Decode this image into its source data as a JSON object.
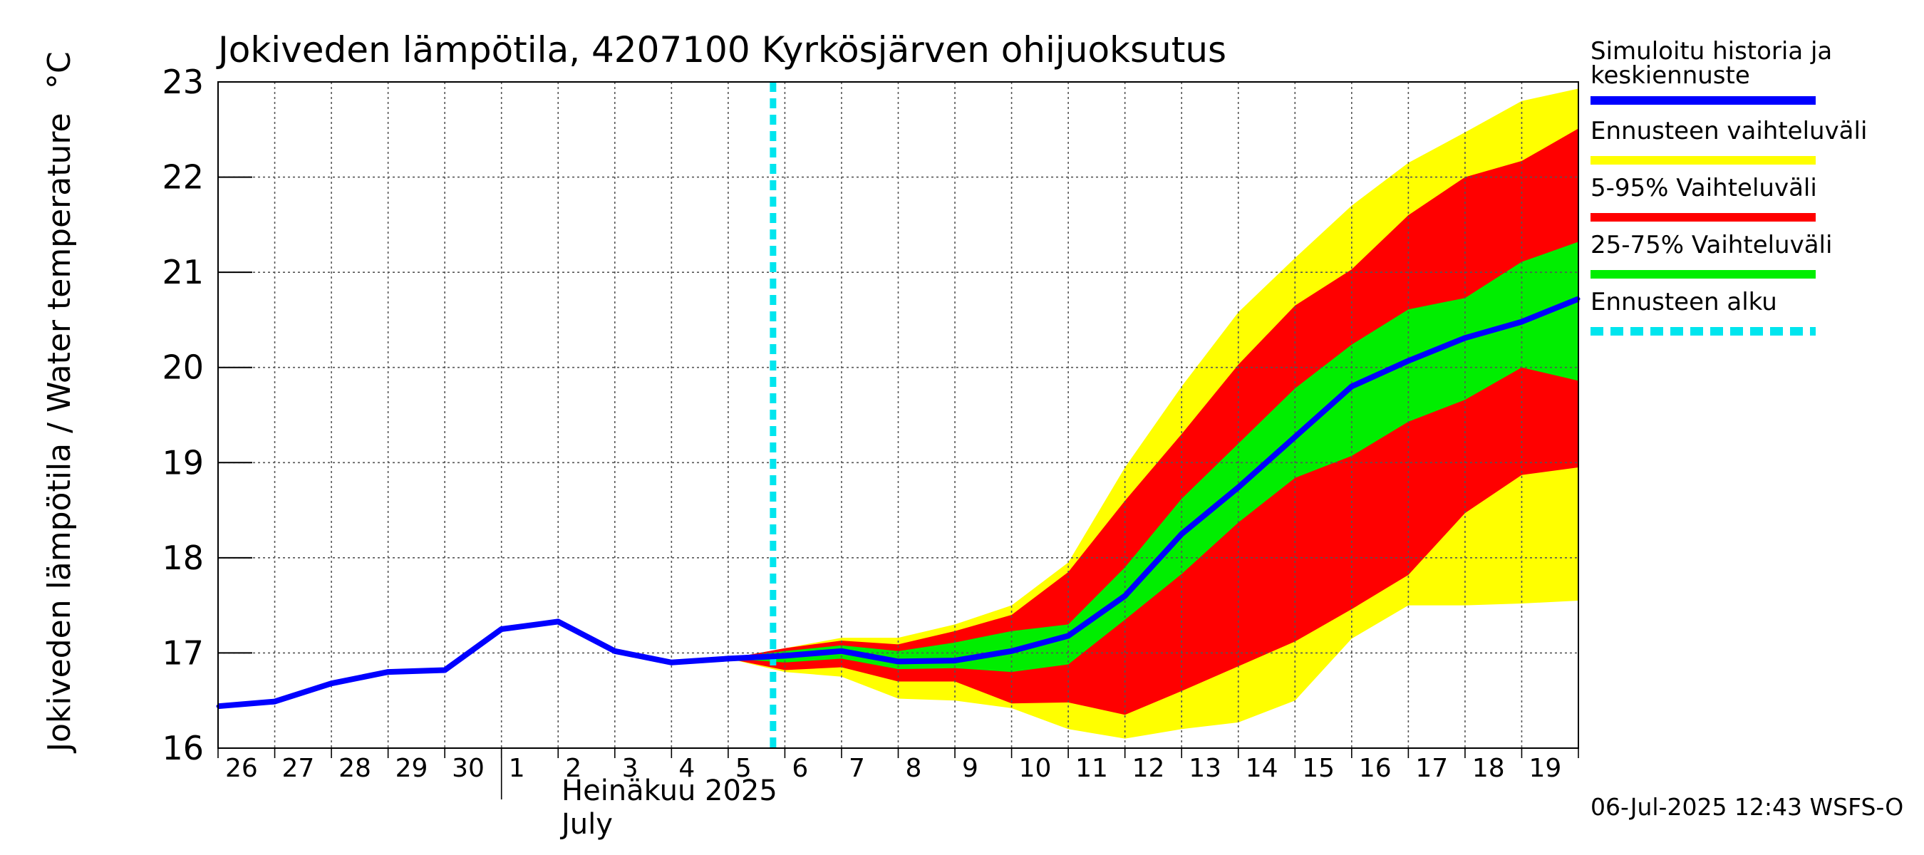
{
  "chart_data": {
    "type": "area",
    "title": "Jokiveden lämpötila, 4207100 Kyrkösjärven ohijuoksutus",
    "ylabel": "Jokiveden lämpötila / Water temperature",
    "yunit": "°C",
    "ylim": [
      16,
      23
    ],
    "yticks": [
      "16",
      "17",
      "18",
      "19",
      "20",
      "21",
      "22",
      "23"
    ],
    "xlim": [
      "2025-06-26",
      "2025-07-20"
    ],
    "xticks": [
      "26",
      "27",
      "28",
      "29",
      "30",
      "1",
      "2",
      "3",
      "4",
      "5",
      "6",
      "7",
      "8",
      "9",
      "10",
      "11",
      "12",
      "13",
      "14",
      "15",
      "16",
      "17",
      "18",
      "19"
    ],
    "month_label_fi": "Heinäkuu  2025",
    "month_label_en": "July",
    "grid": true,
    "legend_position": "right",
    "forecast_start": "2025-07-05T19:00",
    "history": {
      "name": "Simuloitu historia ja keskiennuste",
      "color": "#0000ff",
      "x": [
        "2025-06-26",
        "2025-06-27",
        "2025-06-28",
        "2025-06-29",
        "2025-06-30",
        "2025-07-01",
        "2025-07-02",
        "2025-07-03",
        "2025-07-04",
        "2025-07-05",
        "2025-07-06",
        "2025-07-07",
        "2025-07-08",
        "2025-07-09",
        "2025-07-10",
        "2025-07-11",
        "2025-07-12",
        "2025-07-13",
        "2025-07-14",
        "2025-07-15",
        "2025-07-16",
        "2025-07-17",
        "2025-07-18",
        "2025-07-19",
        "2025-07-20"
      ],
      "values": [
        16.44,
        16.49,
        16.68,
        16.8,
        16.82,
        17.25,
        17.33,
        17.02,
        16.9,
        16.94,
        16.97,
        17.02,
        16.91,
        16.92,
        17.02,
        17.18,
        17.6,
        18.25,
        18.74,
        19.27,
        19.8,
        20.07,
        20.31,
        20.48,
        20.72
      ]
    },
    "bands": [
      {
        "name": "Ennusteen vaihteluväli",
        "color": "#ffff00",
        "x": [
          "2025-07-05",
          "2025-07-06",
          "2025-07-07",
          "2025-07-08",
          "2025-07-09",
          "2025-07-10",
          "2025-07-11",
          "2025-07-12",
          "2025-07-13",
          "2025-07-14",
          "2025-07-15",
          "2025-07-16",
          "2025-07-17",
          "2025-07-18",
          "2025-07-19",
          "2025-07-20"
        ],
        "low": [
          16.94,
          16.8,
          16.75,
          16.52,
          16.5,
          16.42,
          16.2,
          16.1,
          16.2,
          16.27,
          16.5,
          17.15,
          17.5,
          17.5,
          17.52,
          17.55
        ],
        "high": [
          16.94,
          17.05,
          17.16,
          17.16,
          17.3,
          17.5,
          17.95,
          18.95,
          19.8,
          20.58,
          21.15,
          21.7,
          22.15,
          22.47,
          22.8,
          22.93
        ]
      },
      {
        "name": "5-95% Vaihteluväli",
        "color": "#ff0000",
        "x": [
          "2025-07-05",
          "2025-07-06",
          "2025-07-07",
          "2025-07-08",
          "2025-07-09",
          "2025-07-10",
          "2025-07-11",
          "2025-07-12",
          "2025-07-13",
          "2025-07-14",
          "2025-07-15",
          "2025-07-16",
          "2025-07-17",
          "2025-07-18",
          "2025-07-19",
          "2025-07-20"
        ],
        "low": [
          16.94,
          16.82,
          16.85,
          16.7,
          16.7,
          16.47,
          16.48,
          16.35,
          16.6,
          16.86,
          17.12,
          17.46,
          17.82,
          18.47,
          18.87,
          18.95
        ],
        "high": [
          16.94,
          17.05,
          17.13,
          17.09,
          17.23,
          17.4,
          17.85,
          18.6,
          19.3,
          20.03,
          20.65,
          21.03,
          21.6,
          22.0,
          22.17,
          22.51
        ]
      },
      {
        "name": "25-75% Vaihteluväli",
        "color": "#00ee00",
        "x": [
          "2025-07-05",
          "2025-07-06",
          "2025-07-07",
          "2025-07-08",
          "2025-07-09",
          "2025-07-10",
          "2025-07-11",
          "2025-07-12",
          "2025-07-13",
          "2025-07-14",
          "2025-07-15",
          "2025-07-16",
          "2025-07-17",
          "2025-07-18",
          "2025-07-19",
          "2025-07-20"
        ],
        "low": [
          16.94,
          16.9,
          16.94,
          16.83,
          16.84,
          16.8,
          16.88,
          17.35,
          17.83,
          18.37,
          18.84,
          19.07,
          19.43,
          19.66,
          20.0,
          19.86
        ],
        "high": [
          16.94,
          17.02,
          17.08,
          17.02,
          17.11,
          17.23,
          17.3,
          17.9,
          18.62,
          19.2,
          19.78,
          20.24,
          20.61,
          20.73,
          21.11,
          21.32
        ]
      }
    ],
    "legend": [
      {
        "label": "Simuloitu historia ja",
        "label2": "keskiennuste",
        "color": "#0000ff",
        "style": "solid"
      },
      {
        "label": "Ennusteen vaihteluväli",
        "label2": "",
        "color": "#ffff00",
        "style": "solid"
      },
      {
        "label": "5-95% Vaihteluväli",
        "label2": "",
        "color": "#ff0000",
        "style": "solid"
      },
      {
        "label": "25-75% Vaihteluväli",
        "label2": "",
        "color": "#00ee00",
        "style": "solid"
      },
      {
        "label": "Ennusteen alku",
        "label2": "",
        "color": "#00e5ee",
        "style": "dashed"
      }
    ]
  },
  "footer": "06-Jul-2025 12:43 WSFS-O"
}
